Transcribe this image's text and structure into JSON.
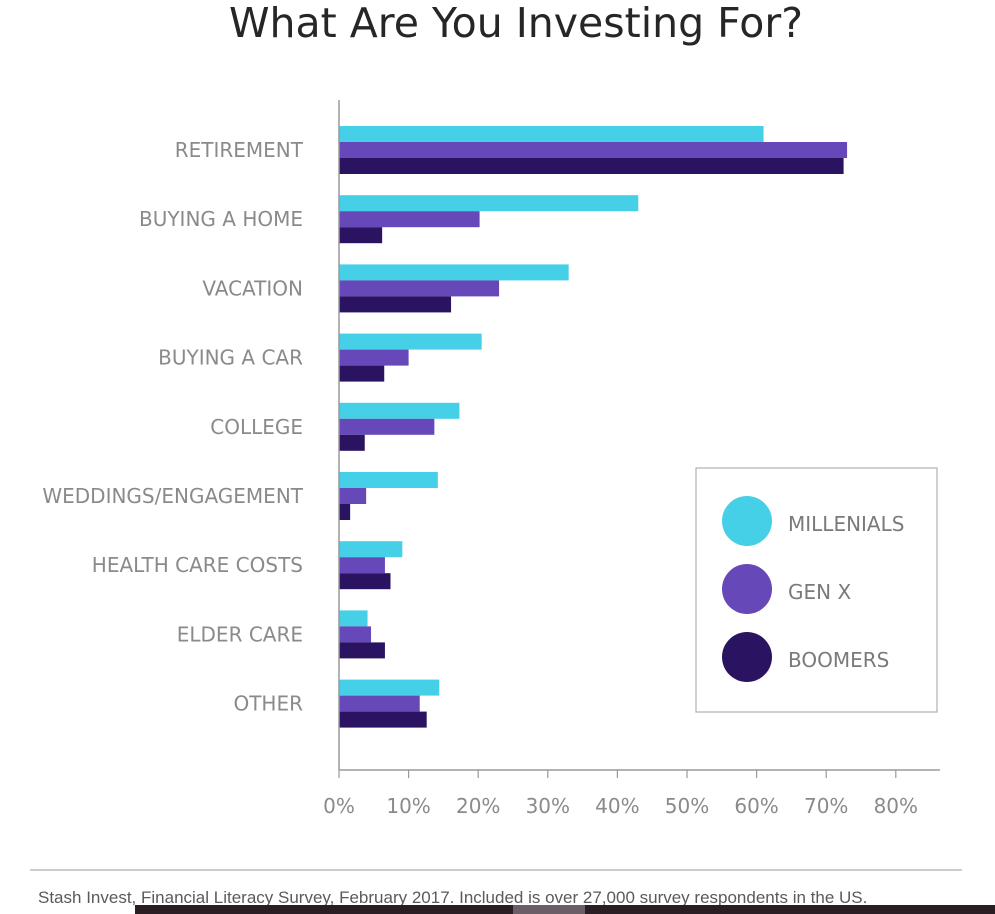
{
  "chart_data": {
    "type": "bar",
    "orientation": "horizontal",
    "title": "What Are You Investing For?",
    "categories": [
      "RETIREMENT",
      "BUYING A HOME",
      "VACATION",
      "BUYING A CAR",
      "COLLEGE",
      "WEDDINGS/ENGAGEMENT",
      "HEALTH CARE COSTS",
      "ELDER CARE",
      "OTHER"
    ],
    "series": [
      {
        "name": "MILLENIALS",
        "color": "#45d0e8",
        "values": [
          61,
          43,
          33,
          20.5,
          17.3,
          14.2,
          9.1,
          4.1,
          14.4
        ]
      },
      {
        "name": "GEN X",
        "color": "#6648b8",
        "values": [
          73,
          20.2,
          23,
          10,
          13.7,
          3.9,
          6.6,
          4.6,
          11.6
        ]
      },
      {
        "name": "BOOMERS",
        "color": "#2a1360",
        "values": [
          72.5,
          6.2,
          16.1,
          6.5,
          3.7,
          1.6,
          7.4,
          6.6,
          12.6
        ]
      }
    ],
    "xlim": [
      0,
      85
    ],
    "xticks": [
      "0%",
      "10%",
      "20%",
      "30%",
      "40%",
      "50%",
      "60%",
      "70%",
      "80%"
    ],
    "legend_position": "bottom-right",
    "grid": false,
    "source": "Stash Invest, Financial Literacy Survey, February 2017. Included is over 27,000 survey respondents in the US."
  }
}
